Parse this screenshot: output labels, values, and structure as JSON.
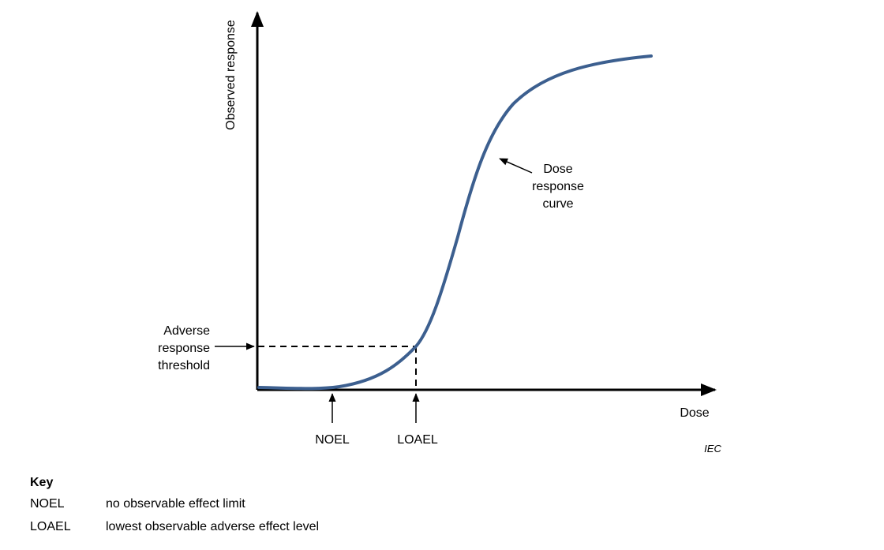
{
  "figure": {
    "y_axis_label": "Observed response",
    "x_axis_label": "Dose",
    "threshold_label": [
      "Adverse",
      "response",
      "threshold"
    ],
    "curve_label": [
      "Dose",
      "response",
      "curve"
    ],
    "noel_label": "NOEL",
    "loael_label": "LOAEL",
    "source_mark": "IEC",
    "curve_color": "#3c5f8f"
  },
  "key": {
    "title": "Key",
    "items": [
      {
        "abbr": "NOEL",
        "meaning": "no observable effect limit"
      },
      {
        "abbr": "LOAEL",
        "meaning": "lowest observable adverse effect level"
      }
    ]
  }
}
